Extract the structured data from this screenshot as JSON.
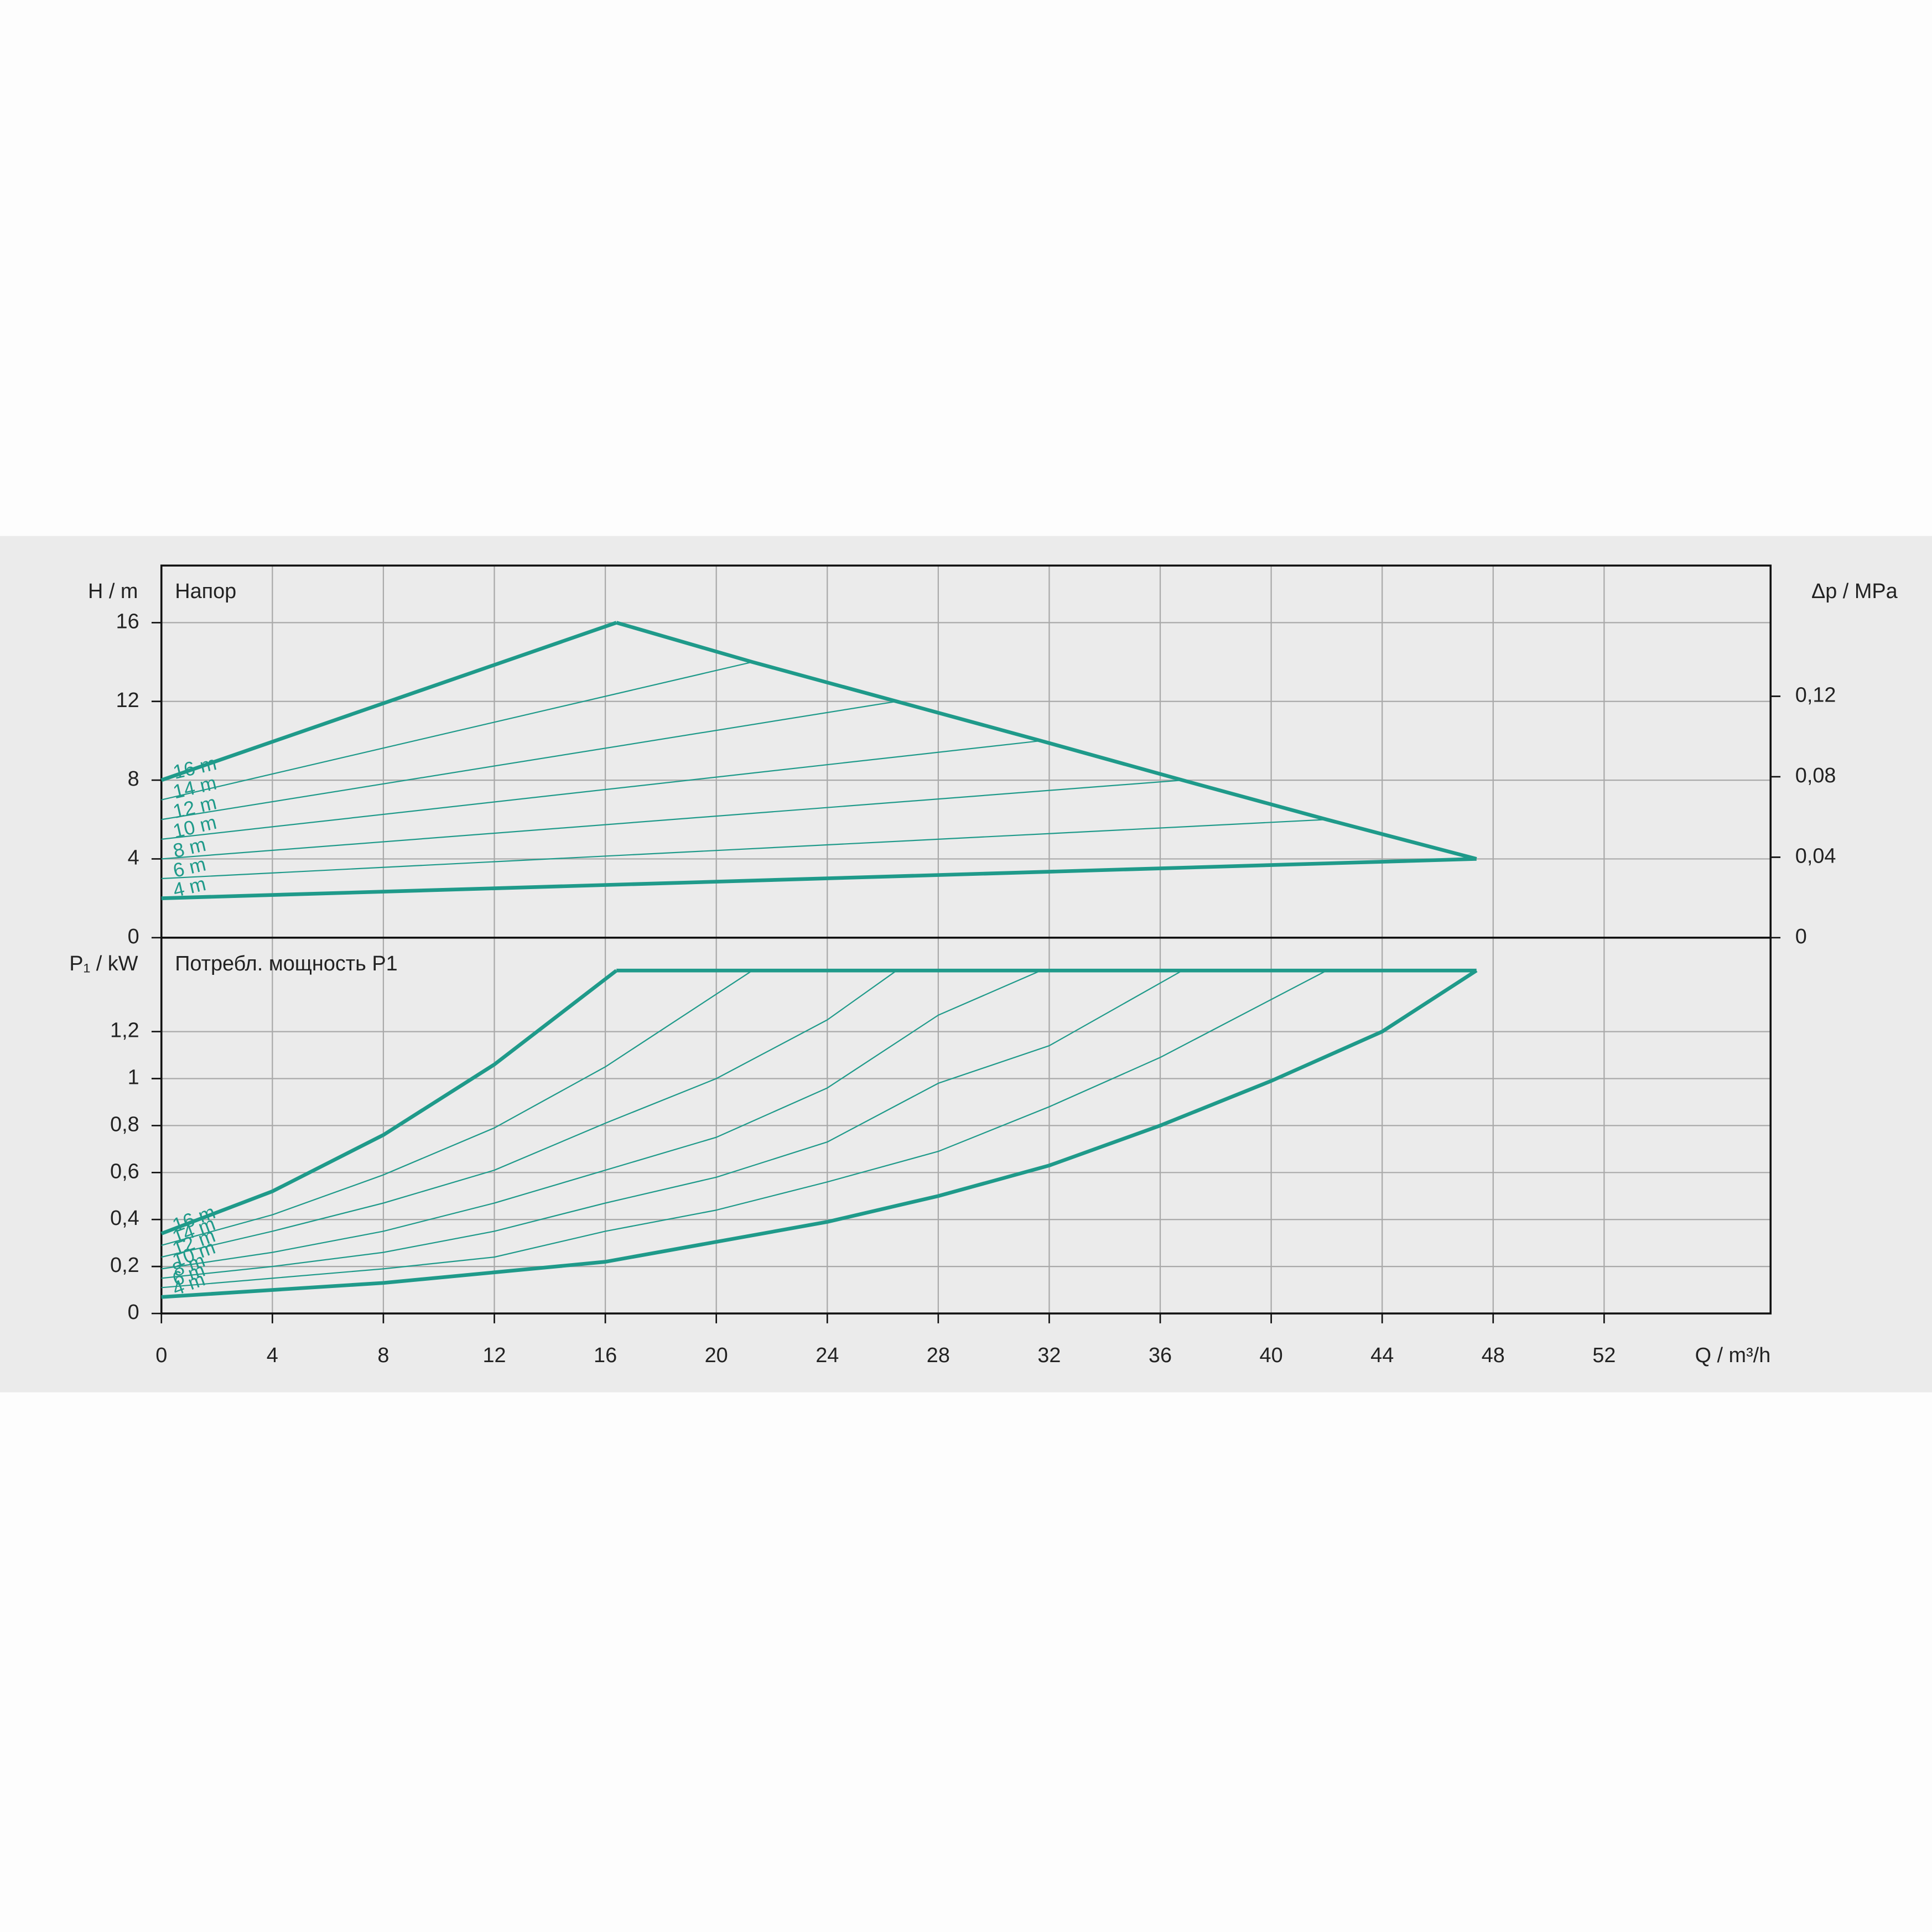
{
  "chart_data": [
    {
      "type": "line",
      "y_label": "H / m",
      "subtitle": "Напор",
      "y2_label": "Δp / MPa",
      "xlim": [
        0,
        58
      ],
      "xticks": [
        0,
        4,
        8,
        12,
        16,
        20,
        24,
        28,
        32,
        36,
        40,
        44,
        48,
        52
      ],
      "ylim": [
        0,
        18.9
      ],
      "yticks": [
        0,
        4,
        8,
        12,
        16
      ],
      "y2lim": [
        0,
        0.185
      ],
      "y2ticks": [
        0,
        {
          "value": 0.04,
          "label": "0,04"
        },
        {
          "value": 0.08,
          "label": "0,08"
        },
        {
          "value": 0.12,
          "label": "0,12"
        }
      ],
      "grid": true,
      "series": [
        {
          "name": "16 m",
          "color": "#1f9a8a",
          "width": 3,
          "x": [
            0,
            16.4
          ],
          "values": [
            8,
            16
          ]
        },
        {
          "name": "14 m",
          "color": "#1f9a8a",
          "width": 1,
          "x": [
            0,
            21.3
          ],
          "values": [
            7,
            14
          ]
        },
        {
          "name": "12 m",
          "color": "#1f9a8a",
          "width": 1,
          "x": [
            0,
            26.5
          ],
          "values": [
            6,
            12
          ]
        },
        {
          "name": "10 m",
          "color": "#1f9a8a",
          "width": 1,
          "x": [
            0,
            31.7
          ],
          "values": [
            5,
            10
          ]
        },
        {
          "name": "8 m",
          "color": "#1f9a8a",
          "width": 1,
          "x": [
            0,
            36.8
          ],
          "values": [
            4,
            8
          ]
        },
        {
          "name": "6 m",
          "color": "#1f9a8a",
          "width": 1,
          "x": [
            0,
            42
          ],
          "values": [
            3,
            6
          ]
        },
        {
          "name": "4 m",
          "color": "#1f9a8a",
          "width": 3,
          "x": [
            0,
            47.4
          ],
          "values": [
            2,
            4
          ]
        },
        {
          "color": "#1f9a8a",
          "width": 3,
          "x": [
            16.4,
            21.3,
            26.5,
            31.7,
            36.8,
            42,
            47.4
          ],
          "values": [
            16,
            14,
            12,
            10,
            8,
            6,
            4
          ]
        }
      ]
    },
    {
      "type": "line",
      "y_label": "P₁ / kW",
      "subtitle": "Потребл. мощность P1",
      "x_label": "Q / m³/h",
      "xlim": [
        0,
        58
      ],
      "xticks": [
        0,
        4,
        8,
        12,
        16,
        20,
        24,
        28,
        32,
        36,
        40,
        44,
        48,
        52
      ],
      "ylim": [
        0,
        1.6
      ],
      "yticks": [
        0,
        {
          "value": 0.2,
          "label": "0,2"
        },
        {
          "value": 0.4,
          "label": "0,4"
        },
        {
          "value": 0.6,
          "label": "0,6"
        },
        {
          "value": 0.8,
          "label": "0,8"
        },
        1,
        {
          "value": 1.2,
          "label": "1,2"
        }
      ],
      "grid": true,
      "series": [
        {
          "name": "16 m",
          "color": "#1f9a8a",
          "width": 3,
          "x": [
            0,
            4,
            8,
            12,
            16.4
          ],
          "values": [
            0.34,
            0.52,
            0.76,
            1.06,
            1.46
          ]
        },
        {
          "name": "14 m",
          "color": "#1f9a8a",
          "width": 1,
          "x": [
            0,
            4,
            8,
            12,
            16,
            21.3
          ],
          "values": [
            0.29,
            0.42,
            0.59,
            0.79,
            1.05,
            1.46
          ]
        },
        {
          "name": "12 m",
          "color": "#1f9a8a",
          "width": 1,
          "x": [
            0,
            4,
            8,
            12,
            16,
            20,
            24,
            26.5
          ],
          "values": [
            0.24,
            0.35,
            0.47,
            0.61,
            0.81,
            1.0,
            1.25,
            1.46
          ]
        },
        {
          "name": "10 m",
          "color": "#1f9a8a",
          "width": 1,
          "x": [
            0,
            4,
            8,
            12,
            16,
            20,
            24,
            28,
            31.7
          ],
          "values": [
            0.19,
            0.26,
            0.35,
            0.47,
            0.61,
            0.75,
            0.96,
            1.27,
            1.46
          ]
        },
        {
          "name": "8 m",
          "color": "#1f9a8a",
          "width": 1,
          "x": [
            0,
            4,
            8,
            12,
            16,
            20,
            24,
            28,
            32,
            36.8
          ],
          "values": [
            0.15,
            0.2,
            0.26,
            0.35,
            0.47,
            0.58,
            0.73,
            0.98,
            1.14,
            1.46
          ]
        },
        {
          "name": "6 m",
          "color": "#1f9a8a",
          "width": 1,
          "x": [
            0,
            4,
            8,
            12,
            16,
            20,
            24,
            28,
            32,
            36,
            42
          ],
          "values": [
            0.11,
            0.15,
            0.19,
            0.24,
            0.35,
            0.44,
            0.56,
            0.69,
            0.88,
            1.09,
            1.46
          ]
        },
        {
          "name": "4 m",
          "color": "#1f9a8a",
          "width": 3,
          "x": [
            0,
            8,
            16,
            24,
            28,
            32,
            36,
            40,
            44,
            47.4
          ],
          "values": [
            0.07,
            0.13,
            0.22,
            0.39,
            0.5,
            0.63,
            0.8,
            0.99,
            1.2,
            1.46
          ]
        },
        {
          "color": "#1f9a8a",
          "width": 3,
          "x": [
            16.4,
            47.4
          ],
          "values": [
            1.46,
            1.46
          ]
        }
      ]
    }
  ]
}
